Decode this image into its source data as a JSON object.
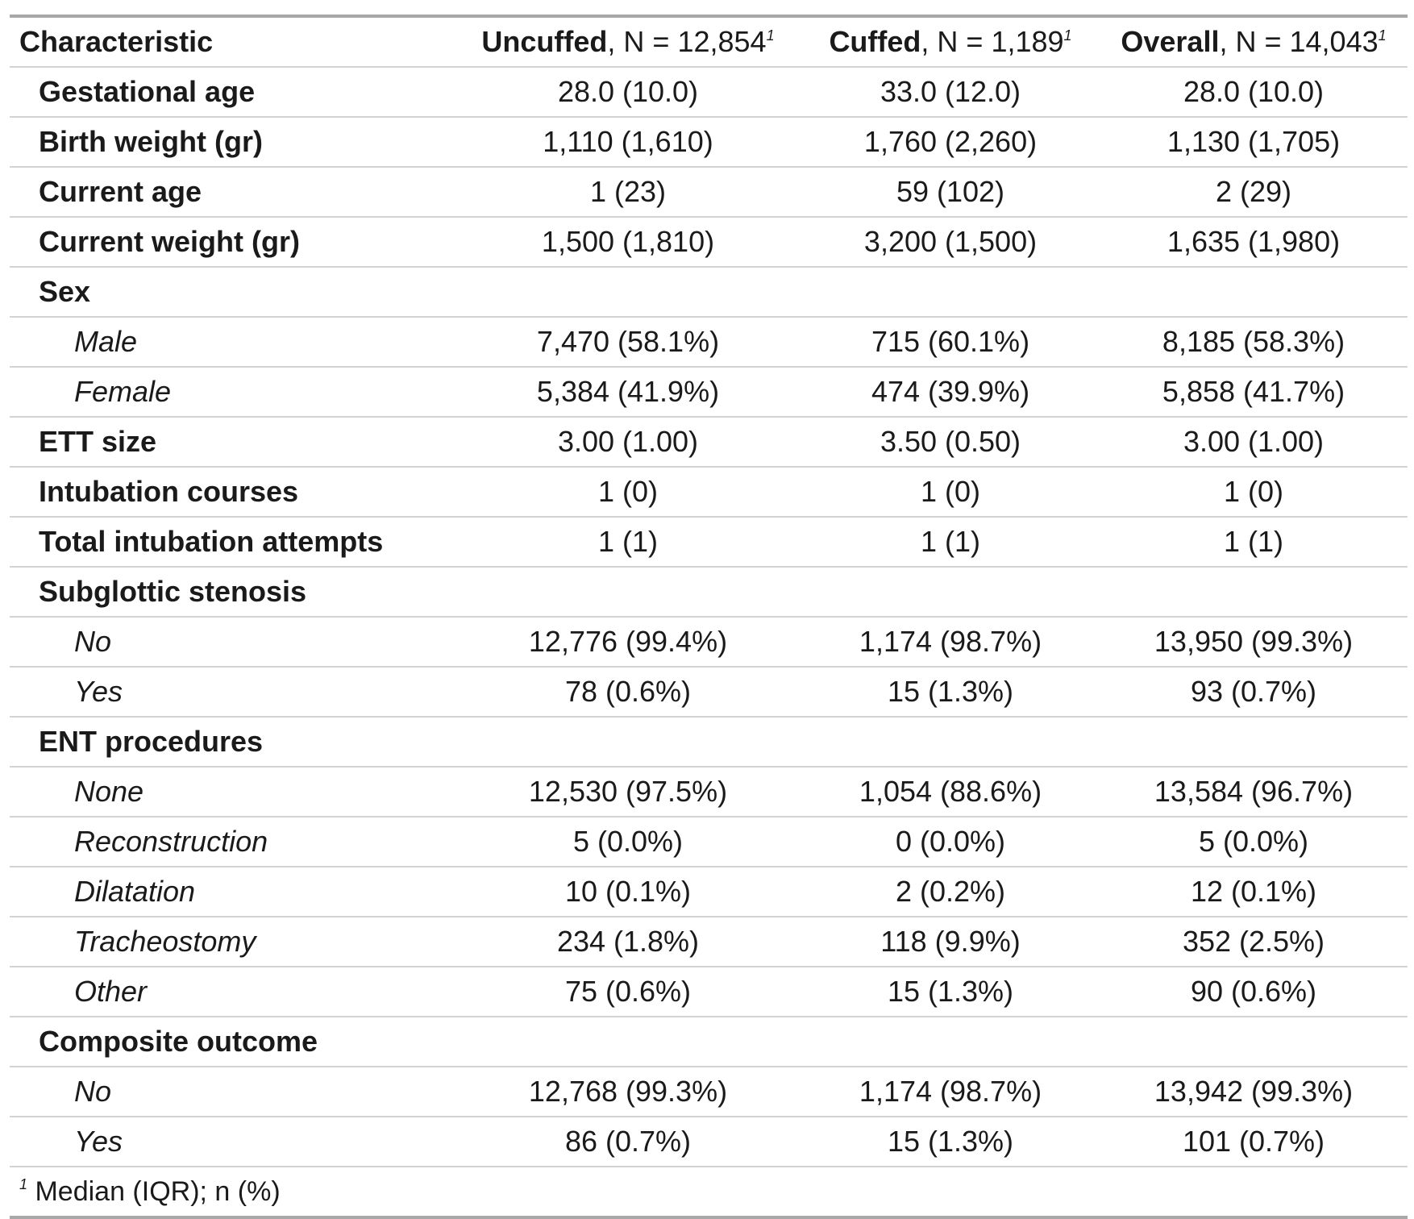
{
  "header": {
    "characteristic": "Characteristic",
    "columns": [
      {
        "name": "Uncuffed",
        "n": ", N = 12,854",
        "mark": "1"
      },
      {
        "name": "Cuffed",
        "n": ", N = 1,189",
        "mark": "1"
      },
      {
        "name": "Overall",
        "n": ", N = 14,043",
        "mark": "1"
      }
    ]
  },
  "rows": [
    {
      "label": "Gestational age",
      "level": 0,
      "values": [
        "28.0 (10.0)",
        "33.0 (12.0)",
        "28.0 (10.0)"
      ]
    },
    {
      "label": "Birth weight (gr)",
      "level": 0,
      "values": [
        "1,110 (1,610)",
        "1,760 (2,260)",
        "1,130 (1,705)"
      ]
    },
    {
      "label": "Current age",
      "level": 0,
      "values": [
        "1 (23)",
        "59 (102)",
        "2 (29)"
      ]
    },
    {
      "label": "Current weight (gr)",
      "level": 0,
      "values": [
        "1,500 (1,810)",
        "3,200 (1,500)",
        "1,635 (1,980)"
      ]
    },
    {
      "label": "Sex",
      "level": 0,
      "values": [
        "",
        "",
        ""
      ]
    },
    {
      "label": "Male",
      "level": 1,
      "values": [
        "7,470 (58.1%)",
        "715 (60.1%)",
        "8,185 (58.3%)"
      ]
    },
    {
      "label": "Female",
      "level": 1,
      "values": [
        "5,384 (41.9%)",
        "474 (39.9%)",
        "5,858 (41.7%)"
      ]
    },
    {
      "label": "ETT size",
      "level": 0,
      "values": [
        "3.00 (1.00)",
        "3.50 (0.50)",
        "3.00 (1.00)"
      ]
    },
    {
      "label": "Intubation courses",
      "level": 0,
      "values": [
        "1 (0)",
        "1 (0)",
        "1 (0)"
      ]
    },
    {
      "label": "Total intubation attempts",
      "level": 0,
      "values": [
        "1 (1)",
        "1 (1)",
        "1 (1)"
      ]
    },
    {
      "label": "Subglottic stenosis",
      "level": 0,
      "values": [
        "",
        "",
        ""
      ]
    },
    {
      "label": "No",
      "level": 1,
      "values": [
        "12,776 (99.4%)",
        "1,174 (98.7%)",
        "13,950 (99.3%)"
      ]
    },
    {
      "label": "Yes",
      "level": 1,
      "values": [
        "78 (0.6%)",
        "15 (1.3%)",
        "93 (0.7%)"
      ]
    },
    {
      "label": "ENT procedures",
      "level": 0,
      "values": [
        "",
        "",
        ""
      ]
    },
    {
      "label": "None",
      "level": 1,
      "values": [
        "12,530 (97.5%)",
        "1,054 (88.6%)",
        "13,584 (96.7%)"
      ]
    },
    {
      "label": "Reconstruction",
      "level": 1,
      "values": [
        "5 (0.0%)",
        "0 (0.0%)",
        "5 (0.0%)"
      ]
    },
    {
      "label": "Dilatation",
      "level": 1,
      "values": [
        "10 (0.1%)",
        "2 (0.2%)",
        "12 (0.1%)"
      ]
    },
    {
      "label": "Tracheostomy",
      "level": 1,
      "values": [
        "234 (1.8%)",
        "118 (9.9%)",
        "352 (2.5%)"
      ]
    },
    {
      "label": "Other",
      "level": 1,
      "values": [
        "75 (0.6%)",
        "15 (1.3%)",
        "90 (0.6%)"
      ]
    },
    {
      "label": "Composite outcome",
      "level": 0,
      "values": [
        "",
        "",
        ""
      ]
    },
    {
      "label": "No",
      "level": 1,
      "values": [
        "12,768 (99.3%)",
        "1,174 (98.7%)",
        "13,942 (99.3%)"
      ]
    },
    {
      "label": "Yes",
      "level": 1,
      "values": [
        "86 (0.7%)",
        "15 (1.3%)",
        "101 (0.7%)"
      ]
    }
  ],
  "footnote": {
    "mark": "1",
    "text": " Median (IQR); n (%)"
  }
}
